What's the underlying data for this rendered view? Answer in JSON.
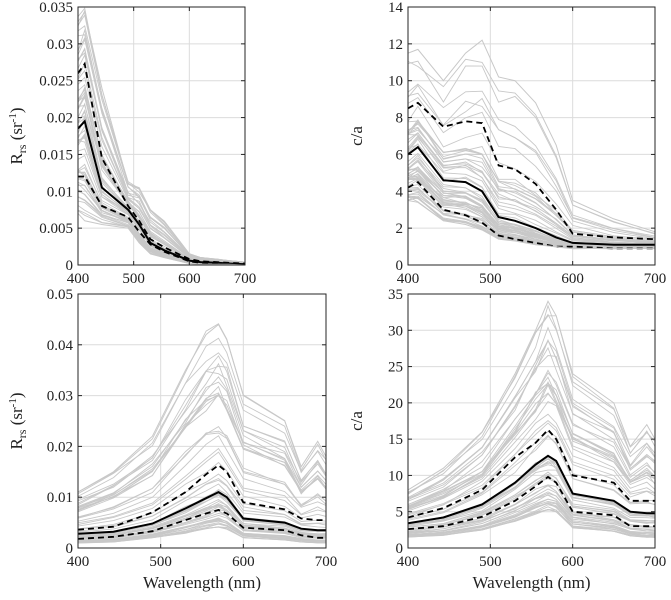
{
  "colors": {
    "ensemble": "#c8c8c8",
    "median": "#000000",
    "quantile": "#000000",
    "axis": "#262626"
  },
  "chart_data": [
    {
      "type": "line",
      "panel": "top-left",
      "ylabel_main": "R",
      "ylabel_sub": "rs",
      "ylabel_unit": "(sr",
      "ylabel_sup": "-1",
      "ylabel_close": ")",
      "xlabel": "",
      "xlim": [
        400,
        700
      ],
      "ylim": [
        0,
        0.035
      ],
      "xticks": [
        "400",
        "500",
        "600",
        "700"
      ],
      "yticks": [
        "0",
        "0.005",
        "0.01",
        "0.015",
        "0.02",
        "0.025",
        "0.03",
        "0.035"
      ],
      "ytick_values": [
        0,
        0.005,
        0.01,
        0.015,
        0.02,
        0.025,
        0.03,
        0.035
      ],
      "x": [
        400,
        412,
        443,
        490,
        510,
        530,
        555,
        600,
        620,
        650,
        670,
        700
      ],
      "series": [
        {
          "name": "median",
          "style": "solid",
          "values": [
            0.0185,
            0.0195,
            0.0105,
            0.0075,
            0.0055,
            0.003,
            0.002,
            0.0006,
            0.0004,
            0.0003,
            0.0002,
            0.0001
          ]
        },
        {
          "name": "upper quantile",
          "style": "dashed",
          "values": [
            0.026,
            0.0273,
            0.0145,
            0.008,
            0.006,
            0.0035,
            0.0024,
            0.0008,
            0.0005,
            0.0004,
            0.0003,
            0.0002
          ]
        },
        {
          "name": "lower quantile",
          "style": "dashed",
          "values": [
            0.012,
            0.012,
            0.008,
            0.0065,
            0.0045,
            0.0028,
            0.0018,
            0.0005,
            0.0003,
            0.0002,
            0.0001,
            0.0001
          ]
        },
        {
          "name": "ensemble max",
          "style": "gray",
          "values": [
            0.033,
            0.0343,
            0.024,
            0.011,
            0.0105,
            0.0075,
            0.0058,
            0.0015,
            0.001,
            0.0008,
            0.0006,
            0.0004
          ]
        },
        {
          "name": "ensemble min",
          "style": "gray",
          "values": [
            0.007,
            0.006,
            0.0055,
            0.005,
            0.003,
            0.0015,
            0.001,
            0.0002,
            0.0001,
            0.0001,
            0.0001,
            0.0
          ]
        }
      ]
    },
    {
      "type": "line",
      "panel": "top-right",
      "ylabel_main": "c/a",
      "xlabel": "",
      "xlim": [
        400,
        700
      ],
      "ylim": [
        0,
        14
      ],
      "xticks": [
        "400",
        "500",
        "600",
        "700"
      ],
      "yticks": [
        "0",
        "2",
        "4",
        "6",
        "8",
        "10",
        "12",
        "14"
      ],
      "ytick_values": [
        0,
        2,
        4,
        6,
        8,
        10,
        12,
        14
      ],
      "x": [
        400,
        412,
        443,
        470,
        490,
        510,
        530,
        555,
        580,
        600,
        650,
        700
      ],
      "series": [
        {
          "name": "median",
          "style": "solid",
          "values": [
            6.0,
            6.4,
            4.6,
            4.5,
            4.0,
            2.6,
            2.4,
            2.0,
            1.5,
            1.2,
            1.1,
            1.1
          ]
        },
        {
          "name": "upper quantile",
          "style": "dashed",
          "values": [
            8.5,
            8.8,
            7.5,
            7.8,
            7.7,
            5.4,
            5.2,
            4.4,
            3.0,
            1.7,
            1.5,
            1.4
          ]
        },
        {
          "name": "lower quantile",
          "style": "dashed",
          "values": [
            4.2,
            4.5,
            3.0,
            2.7,
            2.3,
            1.6,
            1.4,
            1.2,
            1.0,
            1.0,
            0.9,
            0.9
          ]
        },
        {
          "name": "ensemble max",
          "style": "gray",
          "values": [
            11.5,
            11.7,
            10.0,
            11.5,
            12.2,
            10.2,
            10.0,
            8.8,
            6.5,
            3.5,
            2.5,
            1.8
          ]
        },
        {
          "name": "ensemble min",
          "style": "gray",
          "values": [
            3.5,
            3.4,
            2.4,
            2.2,
            1.9,
            1.4,
            1.3,
            1.1,
            1.0,
            0.9,
            0.9,
            0.9
          ]
        }
      ]
    },
    {
      "type": "line",
      "panel": "bottom-left",
      "ylabel_main": "R",
      "ylabel_sub": "rs",
      "ylabel_unit": "(sr",
      "ylabel_sup": "-1",
      "ylabel_close": ")",
      "xlabel": "Wavelength (nm)",
      "xlim": [
        400,
        700
      ],
      "ylim": [
        0,
        0.05
      ],
      "xticks": [
        "400",
        "500",
        "600",
        "700"
      ],
      "yticks": [
        "0",
        "0.01",
        "0.02",
        "0.03",
        "0.04",
        "0.05"
      ],
      "ytick_values": [
        0,
        0.01,
        0.02,
        0.03,
        0.04,
        0.05
      ],
      "x": [
        400,
        443,
        490,
        530,
        555,
        570,
        580,
        600,
        650,
        670,
        690,
        700
      ],
      "series": [
        {
          "name": "median",
          "style": "solid",
          "values": [
            0.0028,
            0.0032,
            0.0048,
            0.0078,
            0.0098,
            0.011,
            0.01,
            0.0058,
            0.005,
            0.0038,
            0.0035,
            0.0035
          ]
        },
        {
          "name": "upper quantile",
          "style": "dashed",
          "values": [
            0.0036,
            0.0042,
            0.007,
            0.011,
            0.0145,
            0.0163,
            0.015,
            0.009,
            0.0076,
            0.0058,
            0.0055,
            0.0055
          ]
        },
        {
          "name": "lower quantile",
          "style": "dashed",
          "values": [
            0.0018,
            0.0022,
            0.0033,
            0.0055,
            0.0068,
            0.0075,
            0.0068,
            0.004,
            0.0035,
            0.0025,
            0.002,
            0.002
          ]
        },
        {
          "name": "ensemble max",
          "style": "gray",
          "values": [
            0.011,
            0.015,
            0.022,
            0.035,
            0.042,
            0.044,
            0.041,
            0.03,
            0.025,
            0.016,
            0.021,
            0.018
          ]
        },
        {
          "name": "ensemble min",
          "style": "gray",
          "values": [
            0.001,
            0.0012,
            0.002,
            0.003,
            0.0038,
            0.0042,
            0.0038,
            0.002,
            0.0016,
            0.0012,
            0.001,
            0.001
          ]
        }
      ]
    },
    {
      "type": "line",
      "panel": "bottom-right",
      "ylabel_main": "c/a",
      "xlabel": "Wavelength (nm)",
      "xlim": [
        400,
        700
      ],
      "ylim": [
        0,
        35
      ],
      "xticks": [
        "400",
        "500",
        "600",
        "700"
      ],
      "yticks": [
        "0",
        "5",
        "10",
        "15",
        "20",
        "25",
        "30",
        "35"
      ],
      "ytick_values": [
        0,
        5,
        10,
        15,
        20,
        25,
        30,
        35
      ],
      "x": [
        400,
        443,
        490,
        530,
        555,
        570,
        580,
        600,
        650,
        670,
        690,
        700
      ],
      "series": [
        {
          "name": "median",
          "style": "solid",
          "values": [
            3.4,
            4.2,
            6.0,
            9.0,
            11.5,
            12.7,
            12.0,
            7.5,
            6.5,
            5.0,
            4.8,
            4.8
          ]
        },
        {
          "name": "upper quantile",
          "style": "dashed",
          "values": [
            4.2,
            5.5,
            8.0,
            12.5,
            14.5,
            16.3,
            15.0,
            10.0,
            9.0,
            6.5,
            6.5,
            6.5
          ]
        },
        {
          "name": "lower quantile",
          "style": "dashed",
          "values": [
            2.6,
            3.0,
            4.3,
            6.5,
            8.5,
            9.8,
            9.0,
            5.0,
            4.5,
            3.0,
            3.0,
            3.0
          ]
        },
        {
          "name": "ensemble max",
          "style": "gray",
          "values": [
            8.0,
            11.0,
            16.0,
            24.0,
            30.0,
            34.0,
            32.0,
            24.0,
            20.0,
            14.0,
            17.0,
            15.0
          ]
        },
        {
          "name": "ensemble min",
          "style": "gray",
          "values": [
            1.5,
            1.8,
            2.5,
            3.8,
            4.8,
            5.3,
            5.0,
            2.8,
            2.3,
            1.7,
            1.5,
            1.5
          ]
        }
      ]
    }
  ]
}
